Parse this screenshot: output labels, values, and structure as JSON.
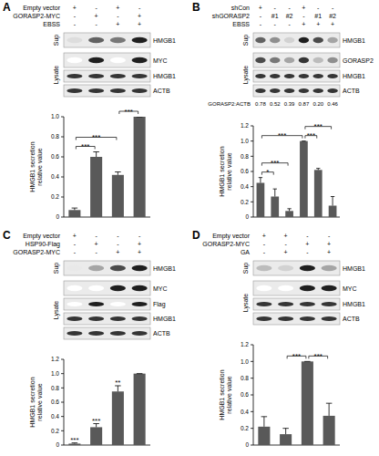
{
  "chart_data": [
    {
      "type": "bar",
      "title": "A",
      "y_label": "HMGB1 secretion relative value",
      "categories": [
        null,
        null,
        null,
        null
      ],
      "values": [
        0.07,
        0.6,
        0.42,
        1
      ],
      "errors": [
        0.02,
        0.05,
        0.03,
        0
      ],
      "color": "#595959",
      "ylim": [
        0,
        1
      ],
      "yticks": [
        0,
        0.2,
        0.4,
        0.6,
        0.8,
        {
          "value": 1,
          "label": "1.0"
        }
      ],
      "conditions": [
        {
          "label": "Empty vector",
          "marks": [
            "+",
            "-",
            "+",
            "-"
          ]
        },
        {
          "label": "GORASP2-MYC",
          "marks": [
            "-",
            "+",
            "-",
            "+"
          ]
        },
        {
          "label": "EBSS",
          "marks": [
            "-",
            "-",
            "+",
            "+"
          ]
        }
      ],
      "blots": [
        {
          "label": "Sup",
          "rows": [
            {
              "label": "HMGB1",
              "bands": [
                0.15,
                0.7,
                0.6,
                1
              ]
            }
          ]
        },
        {
          "label": "Lysate",
          "rows": [
            {
              "label": "MYC",
              "bands": [
                0,
                1,
                0,
                1
              ]
            },
            {
              "label": "HMGB1",
              "bands": [
                0.9,
                0.9,
                0.9,
                0.9
              ]
            },
            {
              "label": "ACTB",
              "bands": [
                0.9,
                0.9,
                0.9,
                0.9
              ]
            }
          ]
        }
      ],
      "annotations": [
        {
          "pair": [
            0,
            1
          ],
          "label": "***"
        },
        {
          "pair": [
            0,
            2
          ],
          "label": "***"
        },
        {
          "pair": [
            2,
            3
          ],
          "label": "***"
        }
      ]
    },
    {
      "type": "bar",
      "title": "B",
      "y_label": "HMGB1 secretion relative value",
      "categories": [
        null,
        null,
        null,
        null,
        null,
        null
      ],
      "values": [
        0.45,
        0.27,
        0.08,
        1,
        0.62,
        0.15
      ],
      "errors": [
        0.07,
        0.1,
        0.03,
        0,
        0.02,
        0.12
      ],
      "color": "#595959",
      "ylim": [
        0,
        1.2
      ],
      "yticks": [
        0,
        0.2,
        0.4,
        0.6,
        0.8,
        {
          "value": 1,
          "label": "1.0"
        },
        1.2
      ],
      "conditions": [
        {
          "label": "shCon",
          "marks": [
            "+",
            "-",
            "-",
            "+",
            "-",
            "-"
          ]
        },
        {
          "label": "shGORASP2",
          "marks": [
            "-",
            "#1",
            "#2",
            "-",
            "#1",
            "#2"
          ]
        },
        {
          "label": "EBSS",
          "marks": [
            "-",
            "-",
            "-",
            "+",
            "+",
            "+"
          ]
        }
      ],
      "blots": [
        {
          "label": "Sup",
          "rows": [
            {
              "label": "HMGB1",
              "bands": [
                0.7,
                0.5,
                0.2,
                1,
                0.8,
                0.4
              ]
            }
          ]
        },
        {
          "label": "Lysate",
          "rows": [
            {
              "label": "GORASP2",
              "bands": [
                0.8,
                0.6,
                0.4,
                0.9,
                0.3,
                0.5
              ]
            },
            {
              "label": "HMGB1",
              "bands": [
                0.9,
                0.9,
                0.9,
                0.9,
                0.9,
                0.9
              ]
            },
            {
              "label": "ACTB",
              "bands": [
                0.9,
                0.9,
                0.9,
                0.9,
                0.9,
                0.9
              ]
            }
          ]
        }
      ],
      "ratio": {
        "label": "GORASP2:ACTB",
        "values": [
          0.78,
          0.52,
          0.39,
          0.87,
          0.2,
          0.46
        ],
        "value_labels": [
          "0.78",
          "0.52",
          "0.39",
          "0.87",
          "0.20",
          "0.46"
        ]
      },
      "annotations": [
        {
          "pair": [
            0,
            1
          ],
          "label": "*"
        },
        {
          "pair": [
            0,
            2
          ],
          "label": "***"
        },
        {
          "pair": [
            0,
            3
          ],
          "label": "***"
        },
        {
          "pair": [
            3,
            4
          ],
          "label": "***"
        },
        {
          "pair": [
            3,
            5
          ],
          "label": "***"
        }
      ]
    },
    {
      "type": "bar",
      "title": "C",
      "y_label": "HMGB1 secretion relative value",
      "categories": [
        null,
        null,
        null,
        null
      ],
      "values": [
        0.02,
        0.25,
        0.75,
        1
      ],
      "errors": [
        0.01,
        0.05,
        0.08,
        0
      ],
      "color": "#595959",
      "ylim": [
        0,
        1.2
      ],
      "yticks": [
        0,
        0.2,
        0.4,
        0.6,
        0.8,
        {
          "value": 1,
          "label": "1.0"
        },
        1.2
      ],
      "conditions": [
        {
          "label": "Empty vector",
          "marks": [
            "+",
            "-",
            "-",
            "-"
          ]
        },
        {
          "label": "HSP90-Flag",
          "marks": [
            "-",
            "+",
            "-",
            "+"
          ]
        },
        {
          "label": "GORASP2-MYC",
          "marks": [
            "-",
            "-",
            "+",
            "+"
          ]
        }
      ],
      "blots": [
        {
          "label": "Sup",
          "rows": [
            {
              "label": "HMGB1",
              "bands": [
                0.1,
                0.4,
                0.8,
                1
              ]
            }
          ]
        },
        {
          "label": "Lysate",
          "rows": [
            {
              "label": "MYC",
              "bands": [
                0,
                0,
                1,
                1
              ]
            },
            {
              "label": "Flag",
              "bands": [
                0,
                1,
                0,
                1
              ]
            },
            {
              "label": "HMGB1",
              "bands": [
                0.9,
                0.9,
                0.9,
                0.9
              ]
            },
            {
              "label": "ACTB",
              "bands": [
                0.9,
                0.9,
                0.9,
                0.9
              ]
            }
          ]
        }
      ],
      "annotations": [
        {
          "index": 0,
          "label": "***"
        },
        {
          "index": 1,
          "label": "***"
        },
        {
          "index": 2,
          "label": "**"
        }
      ]
    },
    {
      "type": "bar",
      "title": "D",
      "y_label": "HMGB1 secretion relative value",
      "categories": [
        null,
        null,
        null,
        null
      ],
      "values": [
        0.22,
        0.13,
        1,
        0.35
      ],
      "errors": [
        0.12,
        0.07,
        0,
        0.15
      ],
      "color": "#595959",
      "ylim": [
        0,
        1.2
      ],
      "yticks": [
        0,
        0.2,
        0.4,
        0.6,
        0.8,
        {
          "value": 1,
          "label": "1.0"
        },
        1.2
      ],
      "conditions": [
        {
          "label": "Empty vector",
          "marks": [
            "+",
            "+",
            "-",
            "-"
          ]
        },
        {
          "label": "GORASP2-MYC",
          "marks": [
            "-",
            "-",
            "+",
            "+"
          ]
        },
        {
          "label": "GA",
          "marks": [
            "-",
            "+",
            "-",
            "+"
          ]
        }
      ],
      "blots": [
        {
          "label": "Sup",
          "rows": [
            {
              "label": "HMGB1",
              "bands": [
                0.3,
                0.2,
                1,
                0.4
              ]
            }
          ]
        },
        {
          "label": "Lysate",
          "rows": [
            {
              "label": "MYC",
              "bands": [
                0,
                0,
                1,
                1
              ]
            },
            {
              "label": "HMGB1",
              "bands": [
                0.9,
                0.9,
                0.9,
                0.9
              ]
            },
            {
              "label": "ACTB",
              "bands": [
                0.9,
                0.9,
                0.9,
                0.9
              ]
            }
          ]
        }
      ],
      "annotations": [
        {
          "pair": [
            1,
            2
          ],
          "label": "***"
        },
        {
          "pair": [
            2,
            3
          ],
          "label": "***"
        }
      ]
    }
  ]
}
